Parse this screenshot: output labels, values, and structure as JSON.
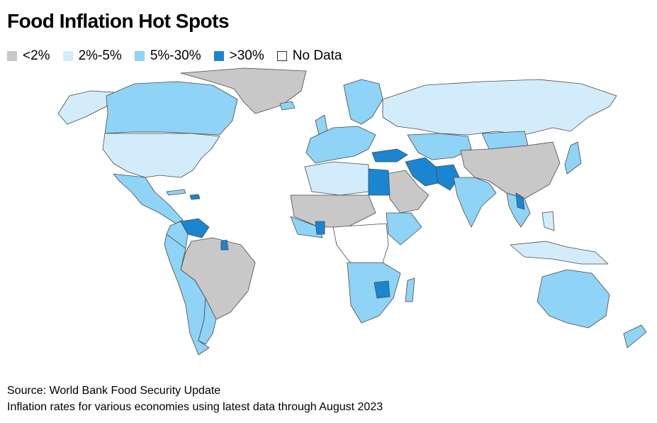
{
  "title": "Food Inflation Hot Spots",
  "legend": [
    {
      "label": "<2%",
      "color": "#c8c8c8"
    },
    {
      "label": "2%-5%",
      "color": "#d2ecfb"
    },
    {
      "label": "5%-30%",
      "color": "#8fd3f6"
    },
    {
      "label": ">30%",
      "color": "#1a86d2"
    },
    {
      "label": "No Data",
      "color": "#ffffff"
    }
  ],
  "source": "Source: World Bank Food Security Update",
  "note": "Inflation rates for various economies using latest data through August 2023",
  "colors": {
    "border": "#4a4a4a",
    "low": "#c8c8c8",
    "mild": "#d2ecfb",
    "moderate": "#8fd3f6",
    "high": "#1a86d2",
    "nodata": "#ffffff"
  }
}
